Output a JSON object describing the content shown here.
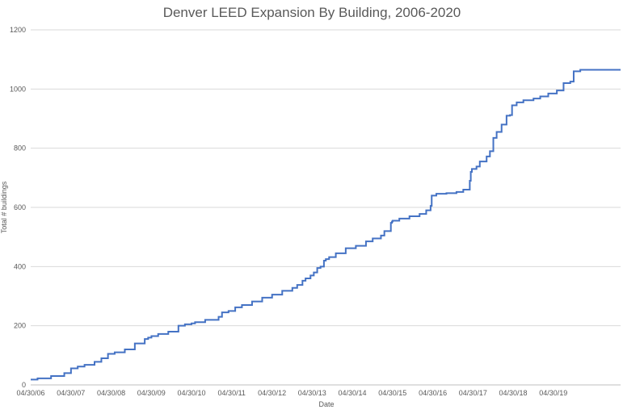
{
  "chart_data": {
    "type": "line",
    "step": true,
    "title": "Denver LEED Expansion By Building, 2006-2020",
    "xlabel": "Date",
    "ylabel": "Total # buildings",
    "xlim": [
      "04/30/06",
      "12/31/20"
    ],
    "ylim": [
      0,
      1200
    ],
    "y_ticks": [
      0,
      200,
      400,
      600,
      800,
      1000,
      1200
    ],
    "x_tick_labels": [
      "04/30/06",
      "04/30/07",
      "04/30/08",
      "04/30/09",
      "04/30/10",
      "04/30/11",
      "04/30/12",
      "04/30/13",
      "04/30/14",
      "04/30/15",
      "04/30/16",
      "04/30/17",
      "04/30/18",
      "04/30/19"
    ],
    "grid": "horizontal",
    "legend": "none",
    "colors": {
      "line": "#4472c4"
    },
    "series": [
      {
        "x": [
          "04/30/06",
          "07/01/06",
          "11/01/06",
          "03/01/07",
          "05/01/07",
          "07/01/07",
          "09/01/07",
          "12/01/07",
          "02/01/08",
          "04/01/08",
          "06/01/08",
          "09/01/08",
          "12/01/08",
          "03/01/09",
          "04/01/09",
          "05/01/09",
          "07/01/09",
          "10/01/09",
          "01/01/10",
          "03/01/10",
          "04/30/10",
          "06/01/10",
          "09/01/10",
          "01/01/11",
          "02/01/11",
          "04/01/11",
          "06/01/11",
          "08/01/11",
          "11/01/11",
          "02/01/12",
          "05/01/12",
          "08/01/12",
          "11/01/12",
          "12/15/12",
          "02/01/13",
          "03/01/13",
          "04/15/13",
          "05/15/13",
          "06/15/13",
          "07/15/13",
          "08/15/13",
          "09/01/13",
          "10/01/13",
          "12/01/13",
          "03/01/14",
          "06/01/14",
          "09/01/14",
          "11/01/14",
          "01/15/15",
          "02/15/15",
          "04/15/15",
          "04/25/15",
          "05/01/15",
          "07/01/15",
          "10/01/15",
          "01/01/16",
          "03/01/16",
          "04/10/16",
          "04/20/16",
          "06/01/16",
          "09/01/16",
          "12/01/16",
          "02/01/17",
          "04/01/17",
          "04/10/17",
          "04/20/17",
          "06/01/17",
          "07/01/17",
          "09/01/17",
          "10/01/17",
          "11/01/17",
          "12/01/17",
          "01/15/18",
          "03/01/18",
          "04/01/18",
          "04/20/18",
          "06/01/18",
          "08/01/18",
          "11/01/18",
          "01/01/19",
          "03/15/19",
          "06/01/19",
          "08/01/19",
          "10/01/19",
          "11/01/19",
          "12/31/19",
          "03/01/20",
          "05/01/20",
          "06/01/20",
          "12/31/20"
        ],
        "y": [
          18,
          22,
          30,
          40,
          56,
          62,
          68,
          78,
          90,
          105,
          110,
          120,
          140,
          155,
          160,
          165,
          172,
          180,
          200,
          205,
          208,
          212,
          220,
          230,
          245,
          250,
          262,
          270,
          282,
          295,
          305,
          318,
          328,
          338,
          352,
          360,
          370,
          380,
          395,
          400,
          420,
          425,
          432,
          445,
          462,
          470,
          485,
          495,
          505,
          520,
          548,
          552,
          555,
          562,
          570,
          578,
          590,
          605,
          640,
          646,
          648,
          652,
          660,
          690,
          720,
          730,
          738,
          755,
          772,
          790,
          835,
          855,
          880,
          910,
          912,
          945,
          955,
          962,
          968,
          975,
          985,
          995,
          1020,
          1025,
          1060,
          1065,
          1065,
          1065,
          1065,
          1065
        ]
      }
    ]
  }
}
